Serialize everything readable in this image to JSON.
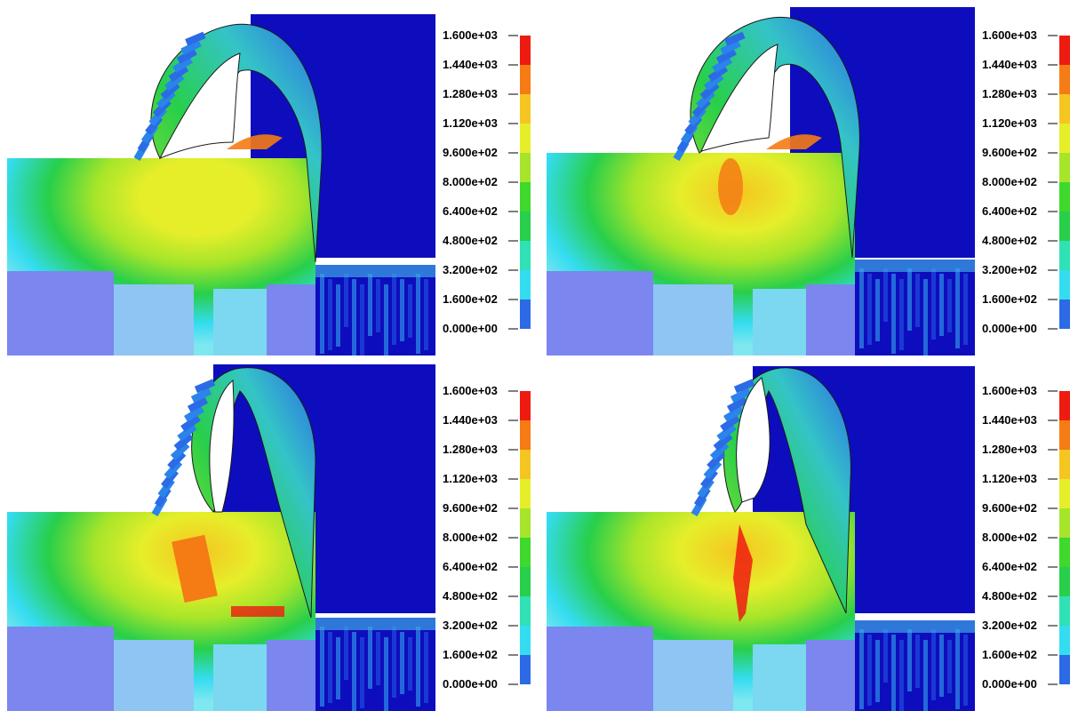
{
  "colorbar": {
    "labels": [
      "1.600e+03",
      "1.440e+03",
      "1.280e+03",
      "1.120e+03",
      "9.600e+02",
      "8.000e+02",
      "6.400e+02",
      "4.800e+02",
      "3.200e+02",
      "1.600e+02",
      "0.000e+00"
    ],
    "colors": [
      "#ee1b10",
      "#f57b14",
      "#f5c521",
      "#e6ee2a",
      "#a6e52a",
      "#3fd82d",
      "#28cf4a",
      "#2fe1b4",
      "#34dcf0",
      "#2c6ae6",
      "#1414d4"
    ]
  },
  "palette": {
    "background_blue": "#0d0dbe",
    "workpiece_light": "#7fe7f0",
    "workpiece_low": "#7b86ef",
    "chip_base": "#34c4c7",
    "tool_blue": "#1e45d8"
  },
  "panels": [
    {
      "id": "stage-1",
      "hotspot": "moderate"
    },
    {
      "id": "stage-2",
      "hotspot": "primary-shear"
    },
    {
      "id": "stage-3",
      "hotspot": "crack-start"
    },
    {
      "id": "stage-4",
      "hotspot": "fracture"
    }
  ]
}
